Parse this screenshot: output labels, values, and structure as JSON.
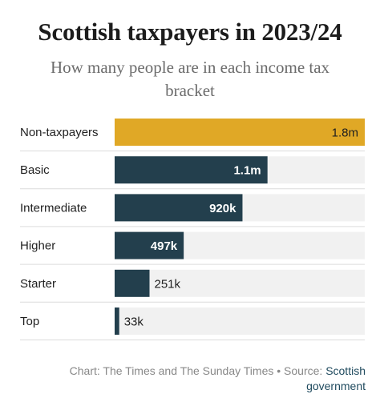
{
  "header": {
    "title": "Scottish taxpayers in 2023/24",
    "subtitle": "How many people are in each income tax bracket"
  },
  "footer": {
    "credit": "Chart: The Times and The Sunday Times • Source: ",
    "source_link": "Scottish government"
  },
  "colors": {
    "highlight": "#e0a826",
    "bar": "#233f4d",
    "track": "#f1f1f1",
    "row_divider": "#dcdcdc"
  },
  "chart_data": {
    "type": "bar",
    "orientation": "horizontal",
    "title": "Scottish taxpayers in 2023/24",
    "subtitle": "How many people are in each income tax bracket",
    "categories": [
      "Non-taxpayers",
      "Basic",
      "Intermediate",
      "Higher",
      "Starter",
      "Top"
    ],
    "values": [
      1800000,
      1100000,
      920000,
      497000,
      251000,
      33000
    ],
    "value_labels": [
      "1.8m",
      "1.1m",
      "920k",
      "497k",
      "251k",
      "33k"
    ],
    "highlighted_category": "Non-taxpayers",
    "xlim": [
      0,
      1800000
    ],
    "xlabel": "",
    "ylabel": "",
    "grid": false,
    "legend": "none"
  }
}
